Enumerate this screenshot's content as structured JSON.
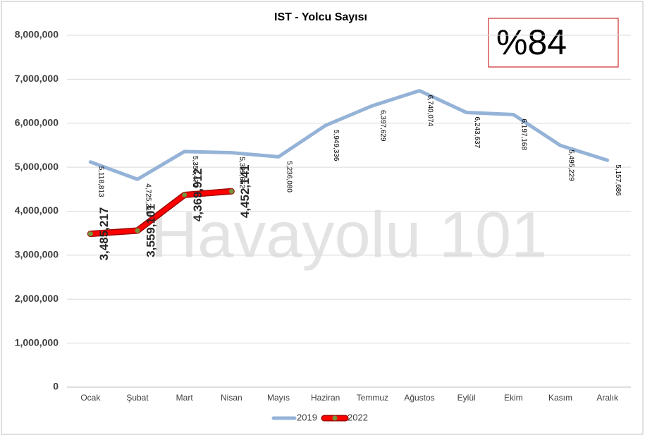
{
  "chart_data": {
    "type": "line",
    "title": "IST - Yolcu Sayısı",
    "categories": [
      "Ocak",
      "Şubat",
      "Mart",
      "Nisan",
      "Mayıs",
      "Haziran",
      "Temmuz",
      "Ağustos",
      "Eylül",
      "Ekim",
      "Kasım",
      "Aralık"
    ],
    "series": [
      {
        "name": "2019",
        "color": "#95b3d7",
        "values": [
          5118813,
          4725218,
          5356471,
          5329652,
          5236080,
          5949336,
          6397629,
          6740074,
          6243637,
          6197168,
          5495229,
          5157686
        ],
        "value_labels": [
          "5,118,813",
          "4,725,218",
          "5,356,471",
          "5,329,652",
          "5,236,080",
          "5,949,336",
          "6,397,629",
          "6,740,074",
          "6,243,637",
          "6,197,168",
          "5,495,229",
          "5,157,686"
        ]
      },
      {
        "name": "2022",
        "color": "#ff0000",
        "marker_color": "#77933c",
        "values": [
          3485217,
          3559101,
          4369912,
          4452141,
          null,
          null,
          null,
          null,
          null,
          null,
          null,
          null
        ],
        "value_labels": [
          "3,485,217",
          "3,559,101",
          "4,369,912",
          "4,452,141",
          null,
          null,
          null,
          null,
          null,
          null,
          null,
          null
        ]
      }
    ],
    "ylim": [
      0,
      8000000
    ],
    "yticks": [
      0,
      {
        "value": 1000000,
        "label": "1,000,000"
      },
      {
        "value": 2000000,
        "label": "2,000,000"
      },
      {
        "value": 3000000,
        "label": "3,000,000"
      },
      {
        "value": 4000000,
        "label": "4,000,000"
      },
      {
        "value": 5000000,
        "label": "5,000,000"
      },
      {
        "value": 6000000,
        "label": "6,000,000"
      },
      {
        "value": 7000000,
        "label": "7,000,000"
      },
      {
        "value": 8000000,
        "label": "8,000,000"
      }
    ],
    "grid": true,
    "legend": "bottom",
    "annotations": [
      "%84",
      "Havayolu 101"
    ]
  }
}
